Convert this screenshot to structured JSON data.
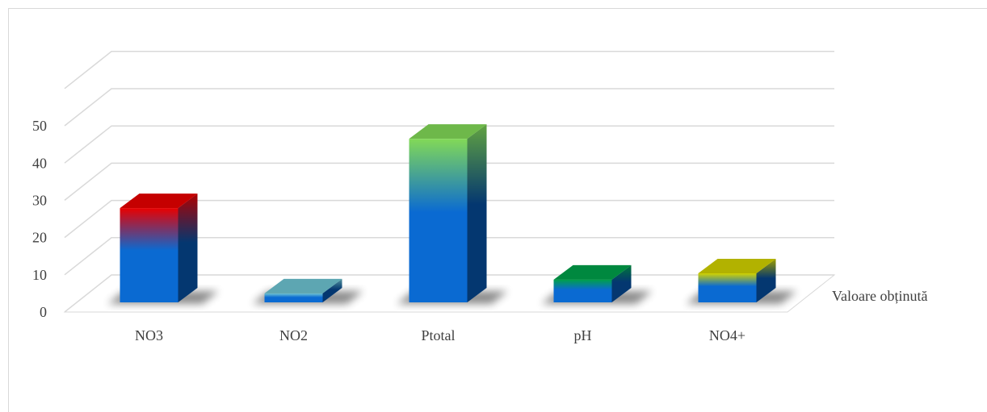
{
  "chart_data": {
    "type": "bar",
    "categories": [
      "NO3",
      "NO2",
      "Ptotal",
      "pH",
      "NO4+"
    ],
    "series": [
      {
        "name": "Valoare obținută",
        "values": [
          25.3,
          2.4,
          43.9,
          6.1,
          7.8
        ],
        "colors": [
          "#e80000",
          "#6ec3d2",
          "#82d957",
          "#00a04a",
          "#d2d200"
        ]
      }
    ],
    "ylim": [
      0,
      60
    ],
    "yticks": [
      0,
      10,
      20,
      30,
      40,
      50
    ],
    "grid": true
  }
}
